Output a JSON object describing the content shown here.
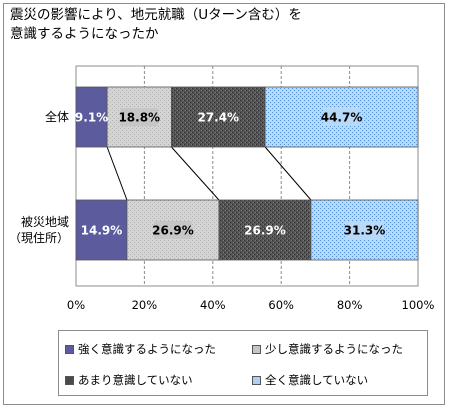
{
  "chart_data": {
    "type": "bar",
    "orientation": "horizontal",
    "stacked": true,
    "title": "震災の影響により、地元就職（Uターン含む）を\n意識するようになったか",
    "categories": [
      "全体",
      "被災地域\n（現住所）"
    ],
    "series": [
      {
        "name": "強く意識するようになった",
        "values": [
          9.1,
          14.9
        ],
        "labels": [
          "9.1%",
          "14.9%"
        ],
        "color": "#5b5b9e"
      },
      {
        "name": "少し意識するようになった",
        "values": [
          18.8,
          26.9
        ],
        "labels": [
          "18.8%",
          "26.9%"
        ],
        "color": "#c6c6c6"
      },
      {
        "name": "あまり意識していない",
        "values": [
          27.4,
          26.9
        ],
        "labels": [
          "27.4%",
          "26.9%"
        ],
        "color": "#4a4a4a"
      },
      {
        "name": "全く意識していない",
        "values": [
          44.7,
          31.3
        ],
        "labels": [
          "44.7%",
          "31.3%"
        ],
        "color": "#a9d0f5"
      }
    ],
    "xlim": [
      0,
      100
    ],
    "xticks": [
      "0%",
      "20%",
      "40%",
      "60%",
      "80%",
      "100%"
    ],
    "legend_position": "bottom",
    "grid": true
  }
}
